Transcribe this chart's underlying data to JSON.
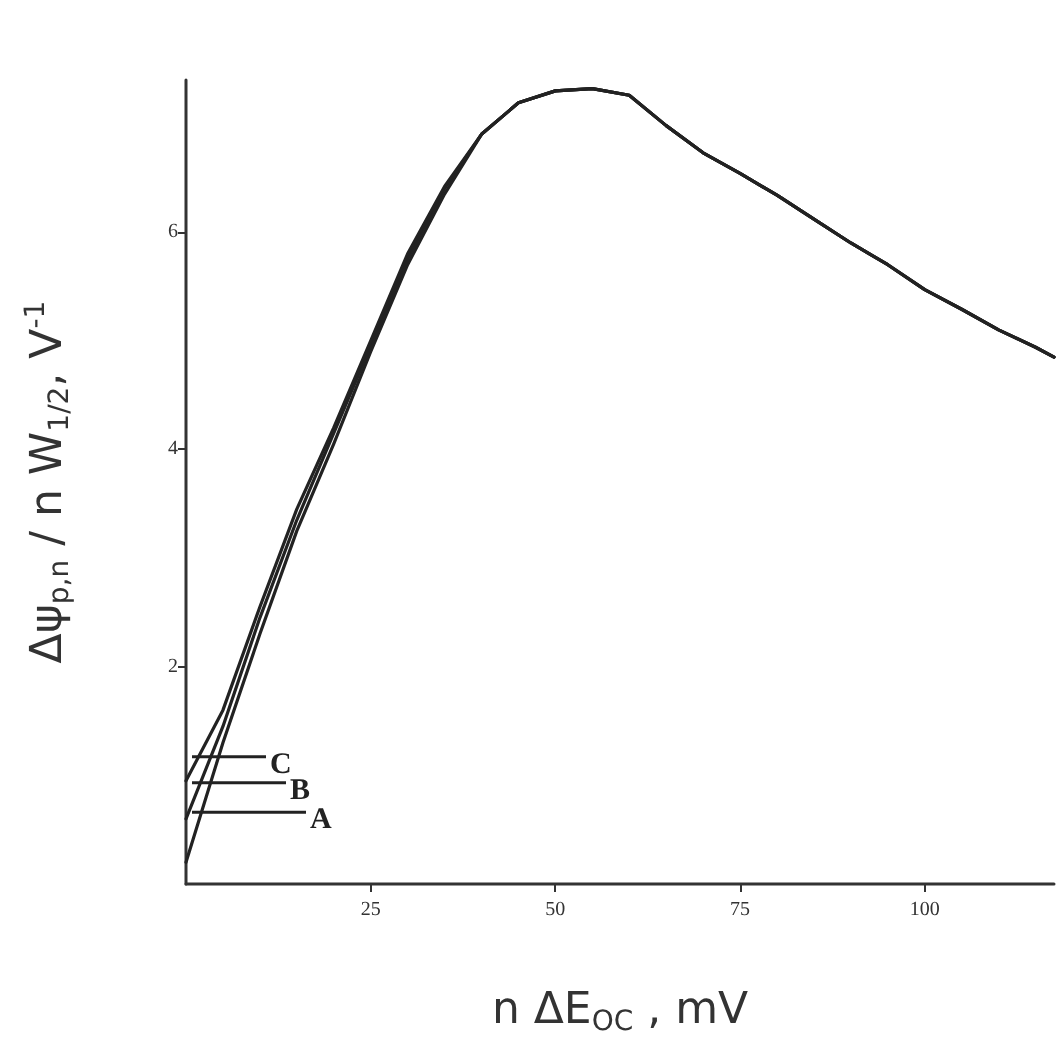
{
  "chart_data": {
    "type": "line",
    "xlabel": "n ΔE$_{OC}$ , mV",
    "ylabel": "Δψ$_{p,n}$ / n W$_{1/2}$, V$^{-1}$",
    "x": [
      0,
      5,
      10,
      15,
      20,
      25,
      30,
      35,
      40,
      45,
      50,
      55,
      60,
      65,
      70,
      75,
      80,
      85,
      90,
      95,
      100,
      105,
      110,
      115,
      117.5
    ],
    "series": [
      {
        "name": "A",
        "color": "#222222",
        "values": [
          0.2,
          1.3,
          2.3,
          3.25,
          4.05,
          4.9,
          5.7,
          6.35,
          6.9,
          7.19,
          7.3,
          7.32,
          7.26,
          6.98,
          6.73,
          6.54,
          6.34,
          6.12,
          5.9,
          5.7,
          5.47,
          5.29,
          5.1,
          4.94,
          4.85
        ]
      },
      {
        "name": "B",
        "color": "#222222",
        "values": [
          0.6,
          1.45,
          2.45,
          3.35,
          4.15,
          4.95,
          5.75,
          6.4,
          6.9,
          7.19,
          7.3,
          7.32,
          7.26,
          6.98,
          6.73,
          6.54,
          6.34,
          6.12,
          5.9,
          5.7,
          5.47,
          5.29,
          5.1,
          4.94,
          4.85
        ]
      },
      {
        "name": "C",
        "color": "#222222",
        "values": [
          0.95,
          1.6,
          2.55,
          3.45,
          4.2,
          5.0,
          5.8,
          6.42,
          6.9,
          7.19,
          7.3,
          7.32,
          7.26,
          6.98,
          6.73,
          6.54,
          6.34,
          6.12,
          5.9,
          5.7,
          5.47,
          5.29,
          5.1,
          4.94,
          4.85
        ]
      }
    ],
    "xlim": [
      0,
      117.5
    ],
    "xticks": [
      25,
      50,
      75,
      100
    ],
    "ylim": [
      0,
      7.4
    ],
    "yticks": [
      2,
      4,
      6
    ],
    "grid": false,
    "legend": "bottom left",
    "marker": "none",
    "line_style": "solid"
  }
}
